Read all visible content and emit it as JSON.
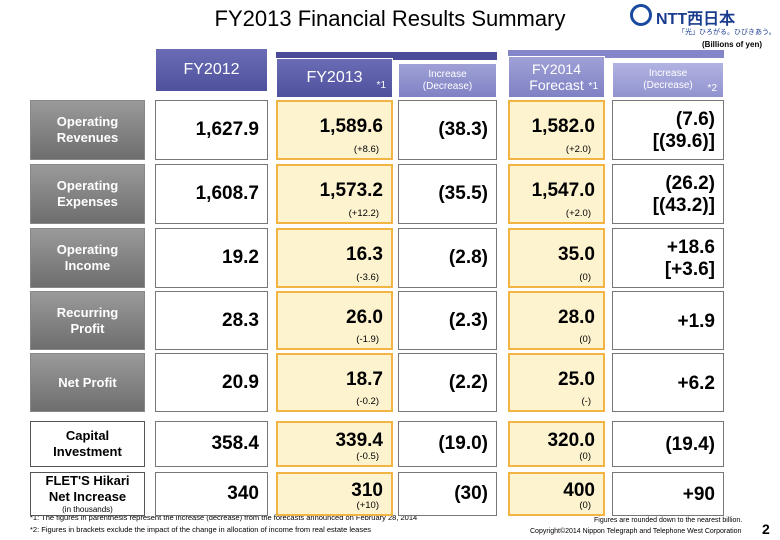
{
  "header": {
    "title": "FY2013 Financial Results Summary",
    "logo": "NTT西日本",
    "tagline": "「光」ひろがる。ひびきあう。",
    "unit": "(Billions of yen)"
  },
  "columns": [
    {
      "label": "FY2012"
    },
    {
      "label": "FY2013",
      "note": "*1"
    },
    {
      "label": "Increase\n(Decrease)"
    },
    {
      "label": "FY2014\nForecast",
      "note": "*1"
    },
    {
      "label": "Increase\n(Decrease)",
      "note": "*2"
    }
  ],
  "table": {
    "rows": [
      {
        "label": [
          "Operating",
          "Revenues"
        ],
        "fy2012": "1,627.9",
        "fy2013": "1,589.6",
        "fy2013_change": "(+8.6)",
        "increase": "(38.3)",
        "fy2014": "1,582.0",
        "fy2014_change": "(+2.0)",
        "increase2": [
          "(7.6)",
          "[(39.6)]"
        ]
      },
      {
        "label": [
          "Operating",
          "Expenses"
        ],
        "fy2012": "1,608.7",
        "fy2013": "1,573.2",
        "fy2013_change": "(+12.2)",
        "increase": "(35.5)",
        "fy2014": "1,547.0",
        "fy2014_change": "(+2.0)",
        "increase2": [
          "(26.2)",
          "[(43.2)]"
        ]
      },
      {
        "label": [
          "Operating",
          "Income"
        ],
        "fy2012": "19.2",
        "fy2013": "16.3",
        "fy2013_change": "(-3.6)",
        "increase": "(2.8)",
        "fy2014": "35.0",
        "fy2014_change": "(0)",
        "increase2": [
          "+18.6",
          "[+3.6]"
        ]
      },
      {
        "label": [
          "Recurring",
          "Profit"
        ],
        "fy2012": "28.3",
        "fy2013": "26.0",
        "fy2013_change": "(-1.9)",
        "increase": "(2.3)",
        "fy2014": "28.0",
        "fy2014_change": "(0)",
        "increase2": [
          "+1.9"
        ]
      },
      {
        "label": [
          "Net Profit"
        ],
        "fy2012": "20.9",
        "fy2013": "18.7",
        "fy2013_change": "(-0.2)",
        "increase": "(2.2)",
        "fy2014": "25.0",
        "fy2014_change": "(-)",
        "increase2": [
          "+6.2"
        ]
      },
      {
        "label": [
          "Capital",
          "Investment"
        ],
        "fy2012": "358.4",
        "fy2013": "339.4",
        "fy2013_change": "(-0.5)",
        "increase": "(19.0)",
        "fy2014": "320.0",
        "fy2014_change": "(0)",
        "increase2": [
          "(19.4)"
        ]
      },
      {
        "label": [
          "FLET'S Hikari",
          "Net Increase"
        ],
        "label_note": "(in thousands)",
        "fy2012": "340",
        "fy2013": "310",
        "fy2013_change": "(+10)",
        "increase": "(30)",
        "fy2014": "400",
        "fy2014_change": "(0)",
        "increase2": [
          "+90"
        ]
      }
    ]
  },
  "footer": {
    "notes": [
      "*1: The figures in parenthesis represent the increase (decrease) from the forecasts announced on February 28, 2014",
      "*2: Figures in brackets exclude the impact of the change in allocation of income from real estate leases"
    ],
    "rounding": "Figures are rounded down to the nearest billion.",
    "copyright": "Copyright©2014 Nippon Telegraph and Telephone West Corporation",
    "page": "2"
  }
}
